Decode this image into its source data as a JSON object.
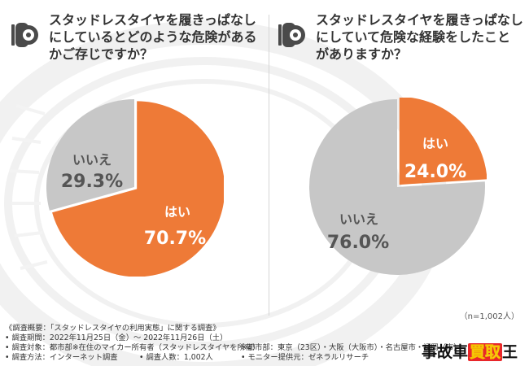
{
  "colors": {
    "yes": "#ee7a37",
    "no": "#c7c7c7",
    "text_on_yes": "#ffffff",
    "text_on_no": "#555555",
    "icon": "#4a4a4a",
    "brand_red": "#e8262a"
  },
  "questions": [
    {
      "icon": "tire-icon",
      "text": "スタッドレスタイヤを履きっぱなしにしているとどのような危険があるかご存じですか？"
    },
    {
      "icon": "tire-icon",
      "text": "スタッドレスタイヤを履きっぱなしにしていて危険な経験をしたことがありますか？"
    }
  ],
  "chart_data": [
    {
      "type": "pie",
      "title": "スタッドレスタイヤを履きっぱなしにしているとどのような危険があるかご存じですか？",
      "slices": [
        {
          "label": "はい",
          "value": 70.7,
          "value_text": "70.7%"
        },
        {
          "label": "いいえ",
          "value": 29.3,
          "value_text": "29.3%"
        }
      ]
    },
    {
      "type": "pie",
      "title": "スタッドレスタイヤを履きっぱなしにしていて危険な経験をしたことがありますか？",
      "slices": [
        {
          "label": "はい",
          "value": 24.0,
          "value_text": "24.0%"
        },
        {
          "label": "いいえ",
          "value": 76.0,
          "value_text": "76.0%"
        }
      ]
    }
  ],
  "sample_note": "（n=1,002人）",
  "survey": {
    "overview": "《調査概要：「スタッドレスタイヤの利用実態」に関する調査》",
    "period": "• 調査期間：2022年11月25日（金）～ 2022年11月26日（土）",
    "target": "• 調査対象：都市部※在住のマイカー所有者（スタッドレスタイヤを所有）",
    "method": "• 調査方法：インターネット調査",
    "respondents": "• 調査人数：1,002人",
    "cities": "※都市部：東京（23区）・大阪（大阪市）・名古屋市・福岡（市）",
    "provider": "• モニター提供元：ゼネラルリサーチ"
  },
  "brand": {
    "part1": "事故車",
    "part2": "買取",
    "part3": "王"
  }
}
